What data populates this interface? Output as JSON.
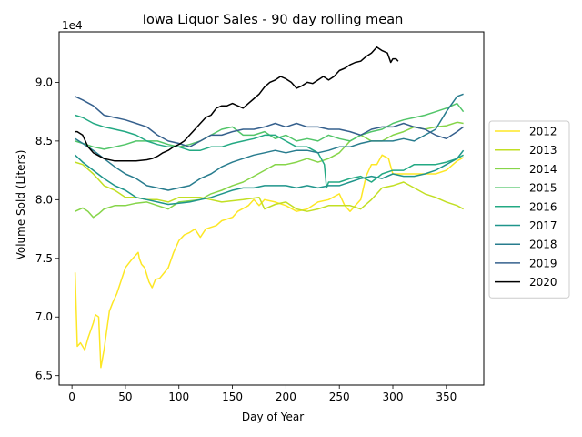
{
  "chart_data": {
    "type": "line",
    "title": "Iowa Liquor Sales - 90 day rolling mean",
    "xlabel": "Day of Year",
    "ylabel": "Volume Sold (Liters)",
    "offset_text": "1e4",
    "xlim": [
      -12,
      385
    ],
    "ylim": [
      6.42,
      9.43
    ],
    "xticks": [
      0,
      50,
      100,
      150,
      200,
      250,
      300,
      350
    ],
    "yticks": [
      6.5,
      7.0,
      7.5,
      8.0,
      8.5,
      9.0
    ],
    "ytick_labels": [
      "6.5",
      "7.0",
      "7.5",
      "8.0",
      "8.5",
      "9.0"
    ],
    "legend": {
      "location": "center-right"
    },
    "series": [
      {
        "name": "2012",
        "color": "#fde725",
        "x": [
          3,
          5,
          8,
          12,
          15,
          20,
          22,
          25,
          27,
          28,
          30,
          35,
          38,
          42,
          50,
          55,
          62,
          63,
          65,
          68,
          72,
          75,
          78,
          82,
          90,
          95,
          100,
          105,
          110,
          115,
          120,
          125,
          135,
          140,
          150,
          155,
          165,
          170,
          175,
          180,
          190,
          200,
          210,
          220,
          225,
          230,
          240,
          250,
          255,
          260,
          265,
          270,
          275,
          280,
          285,
          290,
          296,
          300,
          310,
          320,
          330,
          340,
          350,
          360,
          366
        ],
        "y": [
          7.38,
          6.75,
          6.78,
          6.72,
          6.82,
          6.95,
          7.02,
          7.0,
          6.57,
          6.62,
          6.72,
          7.05,
          7.12,
          7.2,
          7.42,
          7.48,
          7.55,
          7.5,
          7.45,
          7.42,
          7.3,
          7.25,
          7.32,
          7.33,
          7.42,
          7.55,
          7.65,
          7.7,
          7.72,
          7.75,
          7.68,
          7.75,
          7.78,
          7.82,
          7.85,
          7.9,
          7.95,
          8.0,
          7.95,
          8.0,
          7.98,
          7.95,
          7.9,
          7.92,
          7.95,
          7.98,
          8.0,
          8.05,
          7.95,
          7.9,
          7.95,
          8.0,
          8.2,
          8.3,
          8.3,
          8.38,
          8.35,
          8.22,
          8.22,
          8.22,
          8.22,
          8.22,
          8.25,
          8.33,
          8.36
        ]
      },
      {
        "name": "2013",
        "color": "#c2df23",
        "x": [
          3,
          10,
          20,
          30,
          40,
          50,
          60,
          70,
          80,
          90,
          100,
          120,
          140,
          160,
          175,
          180,
          190,
          200,
          210,
          220,
          230,
          240,
          250,
          260,
          270,
          280,
          290,
          300,
          310,
          320,
          330,
          340,
          350,
          360,
          366
        ],
        "y": [
          8.32,
          8.3,
          8.22,
          8.12,
          8.08,
          8.02,
          8.02,
          8.0,
          8.0,
          7.98,
          8.02,
          8.02,
          7.98,
          8.0,
          8.02,
          7.92,
          7.96,
          7.98,
          7.92,
          7.9,
          7.92,
          7.95,
          7.95,
          7.95,
          7.92,
          8.0,
          8.1,
          8.12,
          8.15,
          8.1,
          8.05,
          8.02,
          7.98,
          7.95,
          7.92
        ]
      },
      {
        "name": "2014",
        "color": "#86d549",
        "x": [
          3,
          10,
          15,
          20,
          25,
          30,
          40,
          50,
          60,
          70,
          80,
          90,
          100,
          110,
          120,
          130,
          140,
          150,
          160,
          170,
          180,
          190,
          200,
          210,
          220,
          230,
          240,
          250,
          260,
          270,
          280,
          290,
          300,
          310,
          320,
          330,
          340,
          350,
          360,
          366
        ],
        "y": [
          7.9,
          7.93,
          7.9,
          7.85,
          7.88,
          7.92,
          7.95,
          7.95,
          7.97,
          7.98,
          7.95,
          7.92,
          7.98,
          7.99,
          8.0,
          8.05,
          8.08,
          8.12,
          8.15,
          8.2,
          8.25,
          8.3,
          8.3,
          8.32,
          8.35,
          8.32,
          8.35,
          8.4,
          8.5,
          8.55,
          8.5,
          8.5,
          8.55,
          8.58,
          8.62,
          8.6,
          8.62,
          8.63,
          8.66,
          8.65
        ]
      },
      {
        "name": "2015",
        "color": "#52c569",
        "x": [
          3,
          10,
          20,
          30,
          40,
          50,
          60,
          70,
          80,
          90,
          100,
          110,
          120,
          130,
          140,
          150,
          160,
          170,
          180,
          190,
          200,
          210,
          220,
          230,
          240,
          250,
          260,
          270,
          280,
          290,
          300,
          310,
          320,
          330,
          340,
          350,
          360,
          366
        ],
        "y": [
          8.5,
          8.48,
          8.45,
          8.43,
          8.45,
          8.47,
          8.5,
          8.5,
          8.5,
          8.47,
          8.45,
          8.47,
          8.5,
          8.55,
          8.6,
          8.62,
          8.55,
          8.55,
          8.58,
          8.52,
          8.55,
          8.5,
          8.52,
          8.5,
          8.55,
          8.52,
          8.5,
          8.55,
          8.58,
          8.6,
          8.65,
          8.68,
          8.7,
          8.72,
          8.75,
          8.78,
          8.82,
          8.75
        ]
      },
      {
        "name": "2016",
        "color": "#23a983",
        "x": [
          3,
          10,
          20,
          30,
          40,
          50,
          60,
          70,
          80,
          90,
          100,
          110,
          120,
          130,
          140,
          150,
          160,
          170,
          180,
          190,
          200,
          210,
          220,
          230,
          236,
          238,
          240,
          250,
          260,
          270,
          280,
          290,
          300,
          310,
          320,
          330,
          340,
          350,
          360,
          366
        ],
        "y": [
          8.72,
          8.7,
          8.65,
          8.62,
          8.6,
          8.58,
          8.55,
          8.5,
          8.47,
          8.45,
          8.45,
          8.42,
          8.42,
          8.45,
          8.45,
          8.48,
          8.5,
          8.52,
          8.55,
          8.55,
          8.5,
          8.45,
          8.45,
          8.4,
          8.3,
          8.1,
          8.15,
          8.15,
          8.18,
          8.2,
          8.15,
          8.22,
          8.25,
          8.25,
          8.3,
          8.3,
          8.3,
          8.32,
          8.35,
          8.38
        ]
      },
      {
        "name": "2017",
        "color": "#1f958b",
        "x": [
          3,
          10,
          20,
          30,
          40,
          50,
          60,
          70,
          80,
          90,
          100,
          110,
          120,
          130,
          140,
          150,
          160,
          170,
          180,
          190,
          200,
          210,
          220,
          230,
          240,
          250,
          260,
          270,
          280,
          290,
          300,
          310,
          320,
          330,
          340,
          350,
          360,
          366
        ],
        "y": [
          8.38,
          8.32,
          8.25,
          8.18,
          8.12,
          8.08,
          8.02,
          8.0,
          7.98,
          7.96,
          7.97,
          7.98,
          8.0,
          8.02,
          8.05,
          8.08,
          8.1,
          8.1,
          8.12,
          8.12,
          8.12,
          8.1,
          8.12,
          8.1,
          8.12,
          8.12,
          8.15,
          8.18,
          8.2,
          8.18,
          8.22,
          8.2,
          8.2,
          8.22,
          8.25,
          8.3,
          8.35,
          8.42
        ]
      },
      {
        "name": "2018",
        "color": "#287c8e",
        "x": [
          3,
          10,
          20,
          30,
          40,
          50,
          60,
          70,
          80,
          90,
          100,
          110,
          120,
          130,
          140,
          150,
          160,
          170,
          180,
          190,
          200,
          210,
          220,
          230,
          240,
          250,
          260,
          270,
          280,
          290,
          300,
          310,
          320,
          330,
          340,
          350,
          360,
          366
        ],
        "y": [
          8.52,
          8.48,
          8.42,
          8.35,
          8.28,
          8.22,
          8.18,
          8.12,
          8.1,
          8.08,
          8.1,
          8.12,
          8.18,
          8.22,
          8.28,
          8.32,
          8.35,
          8.38,
          8.4,
          8.42,
          8.4,
          8.42,
          8.42,
          8.4,
          8.42,
          8.45,
          8.45,
          8.48,
          8.5,
          8.5,
          8.5,
          8.52,
          8.5,
          8.55,
          8.6,
          8.75,
          8.88,
          8.9
        ]
      },
      {
        "name": "2019",
        "color": "#35608d",
        "x": [
          3,
          10,
          20,
          30,
          40,
          50,
          60,
          70,
          80,
          90,
          100,
          110,
          120,
          130,
          140,
          150,
          160,
          170,
          180,
          190,
          200,
          210,
          220,
          230,
          240,
          250,
          260,
          270,
          280,
          290,
          300,
          310,
          320,
          330,
          340,
          350,
          360,
          366
        ],
        "y": [
          8.88,
          8.85,
          8.8,
          8.72,
          8.7,
          8.68,
          8.65,
          8.62,
          8.55,
          8.5,
          8.48,
          8.45,
          8.5,
          8.55,
          8.55,
          8.58,
          8.6,
          8.6,
          8.62,
          8.65,
          8.62,
          8.65,
          8.62,
          8.62,
          8.6,
          8.6,
          8.58,
          8.55,
          8.6,
          8.62,
          8.62,
          8.65,
          8.62,
          8.6,
          8.55,
          8.52,
          8.58,
          8.62
        ]
      },
      {
        "name": "2020",
        "color": "#000000",
        "x": [
          3,
          5,
          10,
          15,
          20,
          30,
          40,
          50,
          60,
          70,
          75,
          80,
          85,
          90,
          95,
          100,
          105,
          110,
          115,
          120,
          125,
          130,
          135,
          140,
          145,
          150,
          155,
          160,
          165,
          170,
          175,
          180,
          185,
          190,
          195,
          200,
          205,
          210,
          215,
          220,
          225,
          230,
          235,
          240,
          245,
          250,
          255,
          260,
          265,
          270,
          275,
          280,
          285,
          290,
          295,
          298,
          300,
          303,
          305
        ],
        "y": [
          8.58,
          8.58,
          8.55,
          8.45,
          8.4,
          8.35,
          8.33,
          8.33,
          8.33,
          8.34,
          8.35,
          8.37,
          8.4,
          8.42,
          8.45,
          8.47,
          8.5,
          8.55,
          8.6,
          8.65,
          8.7,
          8.72,
          8.78,
          8.8,
          8.8,
          8.82,
          8.8,
          8.78,
          8.82,
          8.86,
          8.9,
          8.96,
          9.0,
          9.02,
          9.05,
          9.03,
          9.0,
          8.95,
          8.97,
          9.0,
          8.99,
          9.02,
          9.05,
          9.02,
          9.05,
          9.1,
          9.12,
          9.15,
          9.17,
          9.18,
          9.22,
          9.25,
          9.3,
          9.27,
          9.25,
          9.17,
          9.2,
          9.2,
          9.18
        ]
      }
    ]
  }
}
